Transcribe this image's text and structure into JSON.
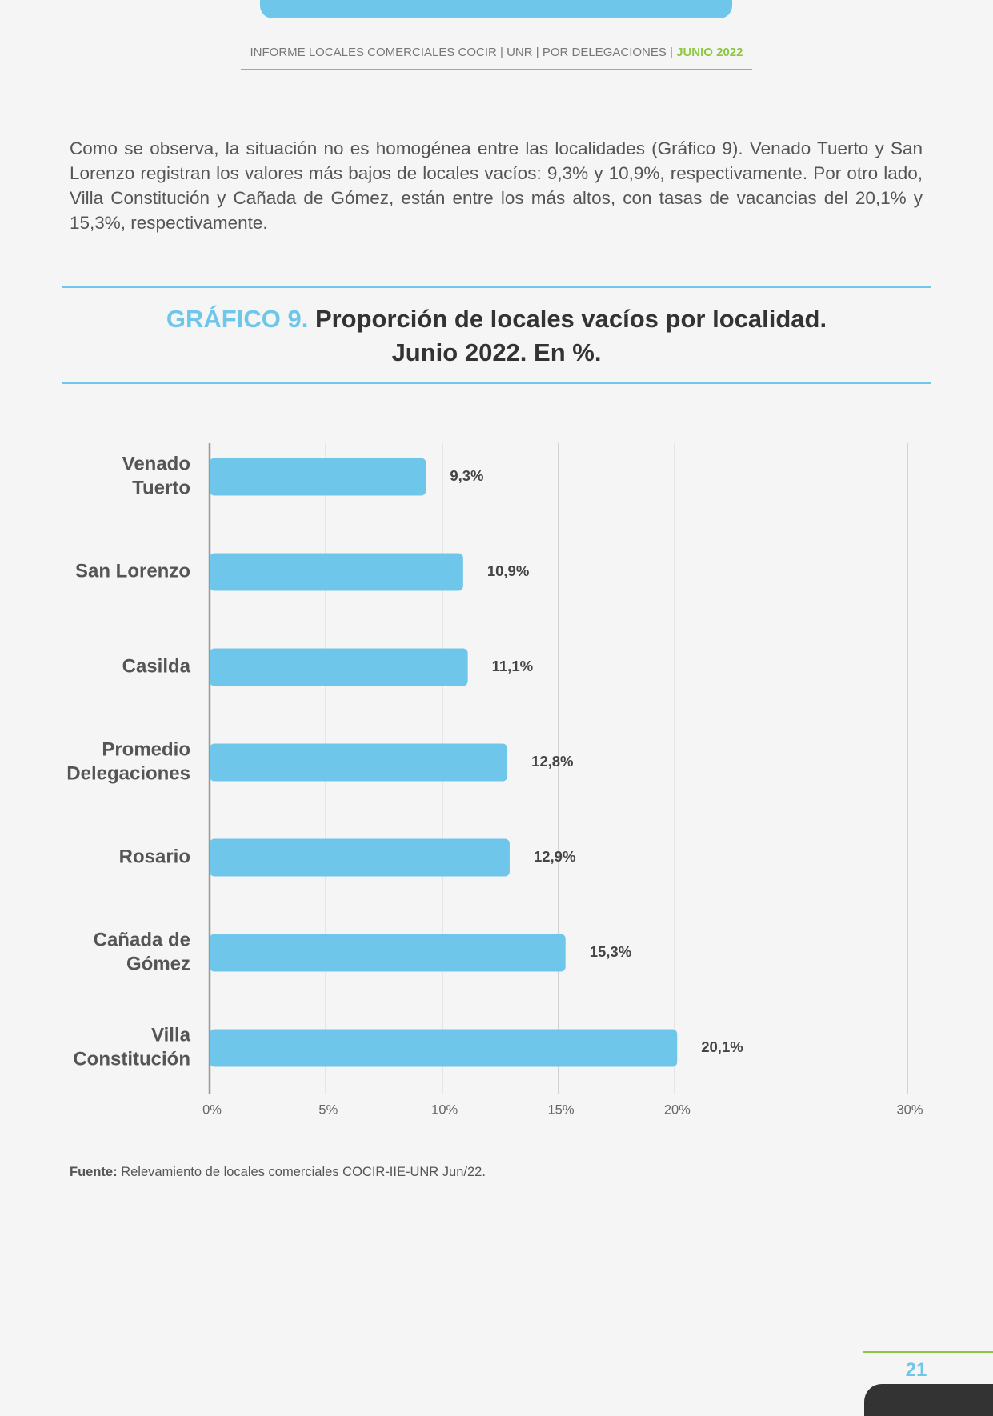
{
  "header": {
    "text": "INFORME LOCALES COMERCIALES COCIR | UNR | POR DELEGACIONES |",
    "highlight": "JUNIO 2022"
  },
  "paragraph": "Como se observa, la situación no es homogénea entre las localidades (Gráfico 9). Venado Tuerto y San Lorenzo registran los valores más bajos de locales vacíos: 9,3% y 10,9%, respectivamente. Por otro lado, Villa Constitución y Cañada de Gómez, están entre los más altos, con tasas de vacancias del 20,1% y 15,3%, respectivamente.",
  "chart_data": {
    "type": "barh",
    "title": {
      "label": "GRÁFICO 9.",
      "line1": "Proporción de locales vacíos por localidad.",
      "line2": "Junio 2022. En %."
    },
    "categories": [
      [
        "Venado",
        "Tuerto"
      ],
      [
        "San Lorenzo"
      ],
      [
        "Casilda"
      ],
      [
        "Promedio",
        "Delegaciones"
      ],
      [
        "Rosario"
      ],
      [
        "Cañada de",
        "Gómez"
      ],
      [
        "Villa",
        "Constitución"
      ]
    ],
    "values": [
      9.3,
      10.9,
      11.1,
      12.8,
      12.9,
      15.3,
      20.1
    ],
    "value_labels": [
      "9,3%",
      "10,9%",
      "11,1%",
      "12,8%",
      "12,9%",
      "15,3%",
      "20,1%"
    ],
    "color": "#6ec6ea",
    "xlim": [
      0,
      30
    ],
    "xticks": [
      {
        "value": 0,
        "label": "0%"
      },
      {
        "value": 5,
        "label": "5%"
      },
      {
        "value": 10,
        "label": "10%"
      },
      {
        "value": 15,
        "label": "15%"
      },
      {
        "value": 20,
        "label": "20%"
      },
      {
        "value": 30,
        "label": "30%"
      }
    ],
    "grid": true
  },
  "source": {
    "label": "Fuente:",
    "text": "Relevamiento de locales comerciales COCIR-IIE-UNR Jun/22."
  },
  "page_number": "21"
}
